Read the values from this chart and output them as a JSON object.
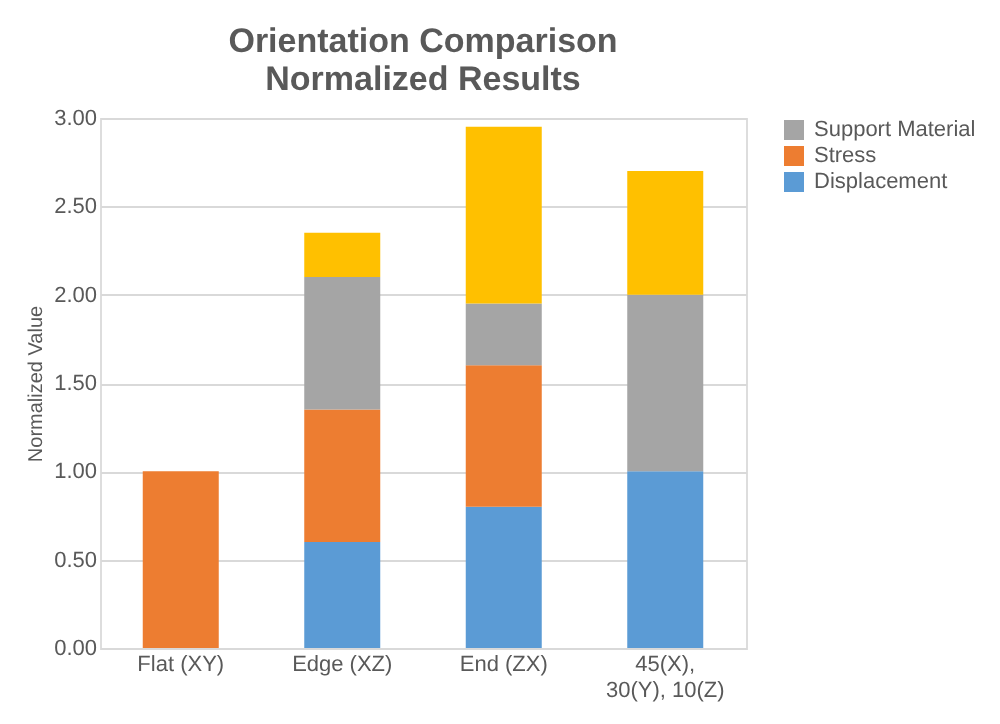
{
  "chart_data": {
    "type": "bar",
    "stacked": true,
    "title": [
      "Orientation Comparison",
      "Normalized Results"
    ],
    "ylabel": "Normalized Value",
    "categories": [
      "Flat (XY)",
      "Edge (XZ)",
      "End (ZX)",
      "45(X), 30(Y), 10(Z)"
    ],
    "series": [
      {
        "name": "Displacement",
        "color": "#5b9bd5",
        "values": [
          0,
          0.6,
          0.8,
          1.0
        ]
      },
      {
        "name": "Stress",
        "color": "#ed7d31",
        "values": [
          1.0,
          0.75,
          0.8,
          0
        ]
      },
      {
        "name": "Support Material",
        "color": "#a5a5a5",
        "values": [
          0,
          0.75,
          0.35,
          1.0
        ]
      },
      {
        "color": "#ffc000",
        "values": [
          0,
          0.25,
          1.0,
          0.7
        ]
      }
    ],
    "ylim": [
      0,
      3
    ],
    "yticks": [
      {
        "value": 0,
        "label": "0.00"
      },
      {
        "value": 0.5,
        "label": "0.50"
      },
      {
        "value": 1,
        "label": "1.00"
      },
      {
        "value": 1.5,
        "label": "1.50"
      },
      {
        "value": 2,
        "label": "2.00"
      },
      {
        "value": 2.5,
        "label": "2.50"
      },
      {
        "value": 3,
        "label": "3.00"
      }
    ],
    "grid": "y",
    "legend": "right"
  }
}
